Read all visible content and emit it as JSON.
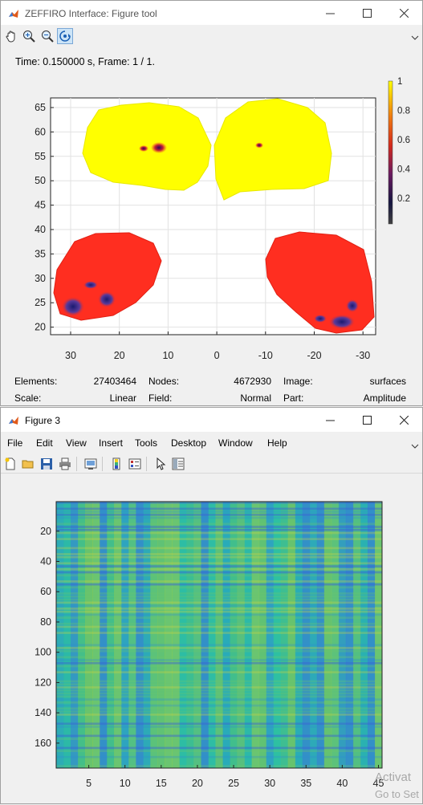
{
  "window1": {
    "title": "ZEFFIRO Interface: Figure tool",
    "toolbar": [
      "pan-icon",
      "zoom-in-icon",
      "zoom-out-icon",
      "rotate-3d-icon"
    ],
    "time_label": "Time: 0.150000 s, Frame: 1 / 1.",
    "colorbar_ticks": [
      "1",
      "0.8",
      "0.6",
      "0.4",
      "0.2"
    ],
    "y_ticks": [
      "65",
      "60",
      "55",
      "50",
      "45",
      "40",
      "35",
      "30",
      "25",
      "20"
    ],
    "x_ticks": [
      "30",
      "20",
      "10",
      "0",
      "-10",
      "-20",
      "-30"
    ],
    "info": {
      "elements_label": "Elements:",
      "elements_value": "27403464",
      "nodes_label": "Nodes:",
      "nodes_value": "4672930",
      "image_label": "Image:",
      "image_value": "surfaces",
      "scale_label": "Scale:",
      "scale_value": "Linear",
      "field_label": "Field:",
      "field_value": "Normal",
      "part_label": "Part:",
      "part_value": "Amplitude"
    }
  },
  "window2": {
    "title": "Figure 3",
    "menu": [
      "File",
      "Edit",
      "View",
      "Insert",
      "Tools",
      "Desktop",
      "Window",
      "Help"
    ],
    "toolbar": [
      "new-figure-icon",
      "open-icon",
      "save-icon",
      "print-icon",
      "link-plot-icon",
      "colorbar-icon",
      "legend-icon",
      "pointer-icon",
      "property-inspector-icon"
    ],
    "y_ticks": [
      "20",
      "40",
      "60",
      "80",
      "100",
      "120",
      "140",
      "160"
    ],
    "x_ticks": [
      "5",
      "10",
      "15",
      "20",
      "25",
      "30",
      "35",
      "40",
      "45"
    ]
  },
  "colors": {
    "accent": "#0078d7",
    "colorbar_high": "#ffff00",
    "heatmap_base": "#2cb9a8"
  },
  "watermark_line1": "Activat",
  "watermark_line2": "Go to Set"
}
